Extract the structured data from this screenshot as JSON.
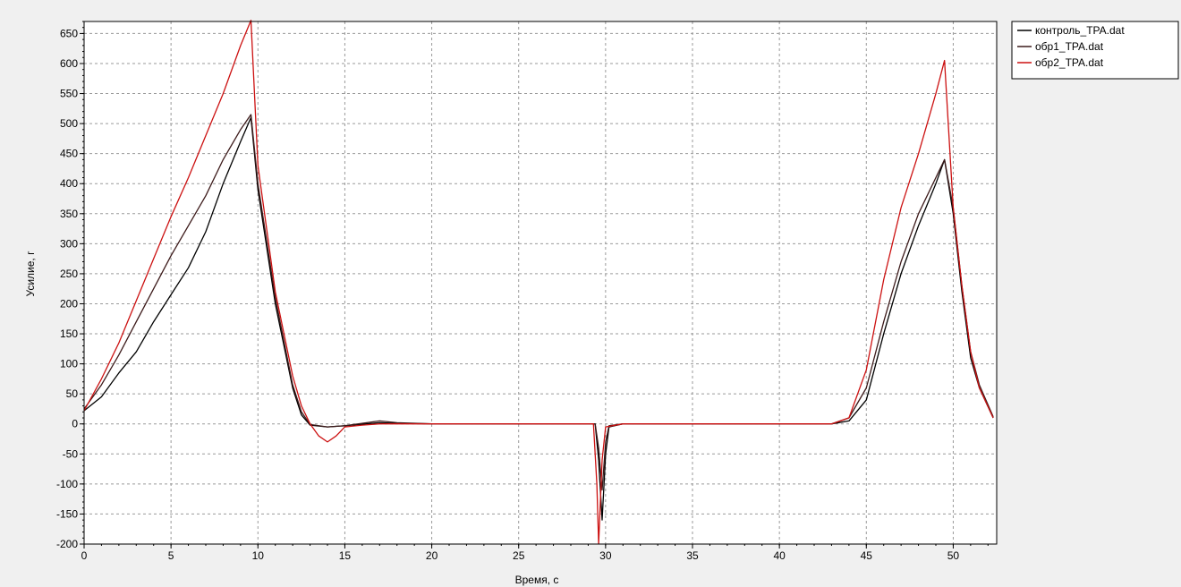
{
  "chart_data": {
    "type": "line",
    "xlabel": "Время, с",
    "ylabel": "Усилие, г",
    "xlim": [
      0,
      52.5
    ],
    "ylim": [
      -200,
      670
    ],
    "xticks": [
      0,
      5,
      10,
      15,
      20,
      25,
      30,
      35,
      40,
      45,
      50
    ],
    "yticks": [
      -200,
      -150,
      -100,
      -50,
      0,
      50,
      100,
      150,
      200,
      250,
      300,
      350,
      400,
      450,
      500,
      550,
      600,
      650
    ],
    "grid": true,
    "legend_position": "top-right",
    "series": [
      {
        "name": "контроль_TPA.dat",
        "color": "#000000",
        "points": [
          [
            0,
            22
          ],
          [
            1,
            45
          ],
          [
            2,
            85
          ],
          [
            3,
            120
          ],
          [
            4,
            170
          ],
          [
            5,
            215
          ],
          [
            6,
            260
          ],
          [
            7,
            320
          ],
          [
            8,
            400
          ],
          [
            9,
            470
          ],
          [
            9.6,
            510
          ],
          [
            10,
            390
          ],
          [
            11,
            200
          ],
          [
            12,
            60
          ],
          [
            12.5,
            15
          ],
          [
            13,
            -2
          ],
          [
            14,
            -5
          ],
          [
            15,
            -3
          ],
          [
            17,
            2
          ],
          [
            18,
            1
          ],
          [
            20,
            0
          ],
          [
            25,
            0
          ],
          [
            29.4,
            0
          ],
          [
            29.6,
            -60
          ],
          [
            29.8,
            -160
          ],
          [
            30,
            -50
          ],
          [
            30.2,
            -5
          ],
          [
            31,
            0
          ],
          [
            35,
            0
          ],
          [
            40,
            0
          ],
          [
            43,
            0
          ],
          [
            44,
            5
          ],
          [
            45,
            40
          ],
          [
            46,
            150
          ],
          [
            47,
            250
          ],
          [
            48,
            330
          ],
          [
            49,
            400
          ],
          [
            49.5,
            440
          ],
          [
            50,
            350
          ],
          [
            50.5,
            220
          ],
          [
            51,
            110
          ],
          [
            51.5,
            60
          ],
          [
            52.3,
            10
          ]
        ]
      },
      {
        "name": "обр1_TPA.dat",
        "color": "#3c1a1a",
        "points": [
          [
            0,
            25
          ],
          [
            1,
            65
          ],
          [
            2,
            115
          ],
          [
            3,
            170
          ],
          [
            4,
            225
          ],
          [
            5,
            280
          ],
          [
            6,
            330
          ],
          [
            7,
            380
          ],
          [
            8,
            440
          ],
          [
            9,
            490
          ],
          [
            9.6,
            515
          ],
          [
            10,
            400
          ],
          [
            11,
            210
          ],
          [
            12,
            65
          ],
          [
            12.5,
            20
          ],
          [
            13,
            -1
          ],
          [
            14,
            -5
          ],
          [
            15,
            -3
          ],
          [
            17,
            5
          ],
          [
            18,
            2
          ],
          [
            20,
            0
          ],
          [
            25,
            0
          ],
          [
            29.4,
            0
          ],
          [
            29.6,
            -40
          ],
          [
            29.8,
            -110
          ],
          [
            30,
            -30
          ],
          [
            30.2,
            -3
          ],
          [
            31,
            0
          ],
          [
            35,
            0
          ],
          [
            40,
            0
          ],
          [
            43,
            0
          ],
          [
            44,
            10
          ],
          [
            45,
            60
          ],
          [
            46,
            170
          ],
          [
            47,
            270
          ],
          [
            48,
            350
          ],
          [
            49,
            410
          ],
          [
            49.5,
            440
          ],
          [
            50,
            360
          ],
          [
            50.5,
            230
          ],
          [
            51,
            120
          ],
          [
            51.5,
            65
          ],
          [
            52.3,
            12
          ]
        ]
      },
      {
        "name": "обр2_TPA.dat",
        "color": "#cc1111",
        "points": [
          [
            0,
            22
          ],
          [
            1,
            75
          ],
          [
            2,
            135
          ],
          [
            3,
            205
          ],
          [
            4,
            275
          ],
          [
            5,
            345
          ],
          [
            6,
            410
          ],
          [
            7,
            480
          ],
          [
            8,
            550
          ],
          [
            9,
            630
          ],
          [
            9.6,
            672
          ],
          [
            10,
            430
          ],
          [
            11,
            220
          ],
          [
            12,
            80
          ],
          [
            12.5,
            30
          ],
          [
            13,
            0
          ],
          [
            13.5,
            -20
          ],
          [
            14,
            -30
          ],
          [
            14.5,
            -20
          ],
          [
            15,
            -5
          ],
          [
            16,
            -2
          ],
          [
            17,
            0
          ],
          [
            20,
            0
          ],
          [
            25,
            0
          ],
          [
            29.3,
            0
          ],
          [
            29.5,
            -100
          ],
          [
            29.6,
            -200
          ],
          [
            29.8,
            -60
          ],
          [
            30,
            -5
          ],
          [
            31,
            0
          ],
          [
            35,
            0
          ],
          [
            40,
            0
          ],
          [
            43,
            0
          ],
          [
            44,
            10
          ],
          [
            45,
            90
          ],
          [
            46,
            240
          ],
          [
            47,
            360
          ],
          [
            48,
            450
          ],
          [
            49,
            550
          ],
          [
            49.5,
            605
          ],
          [
            50,
            360
          ],
          [
            50.5,
            230
          ],
          [
            51,
            120
          ],
          [
            51.5,
            60
          ],
          [
            52.3,
            10
          ]
        ]
      }
    ]
  }
}
